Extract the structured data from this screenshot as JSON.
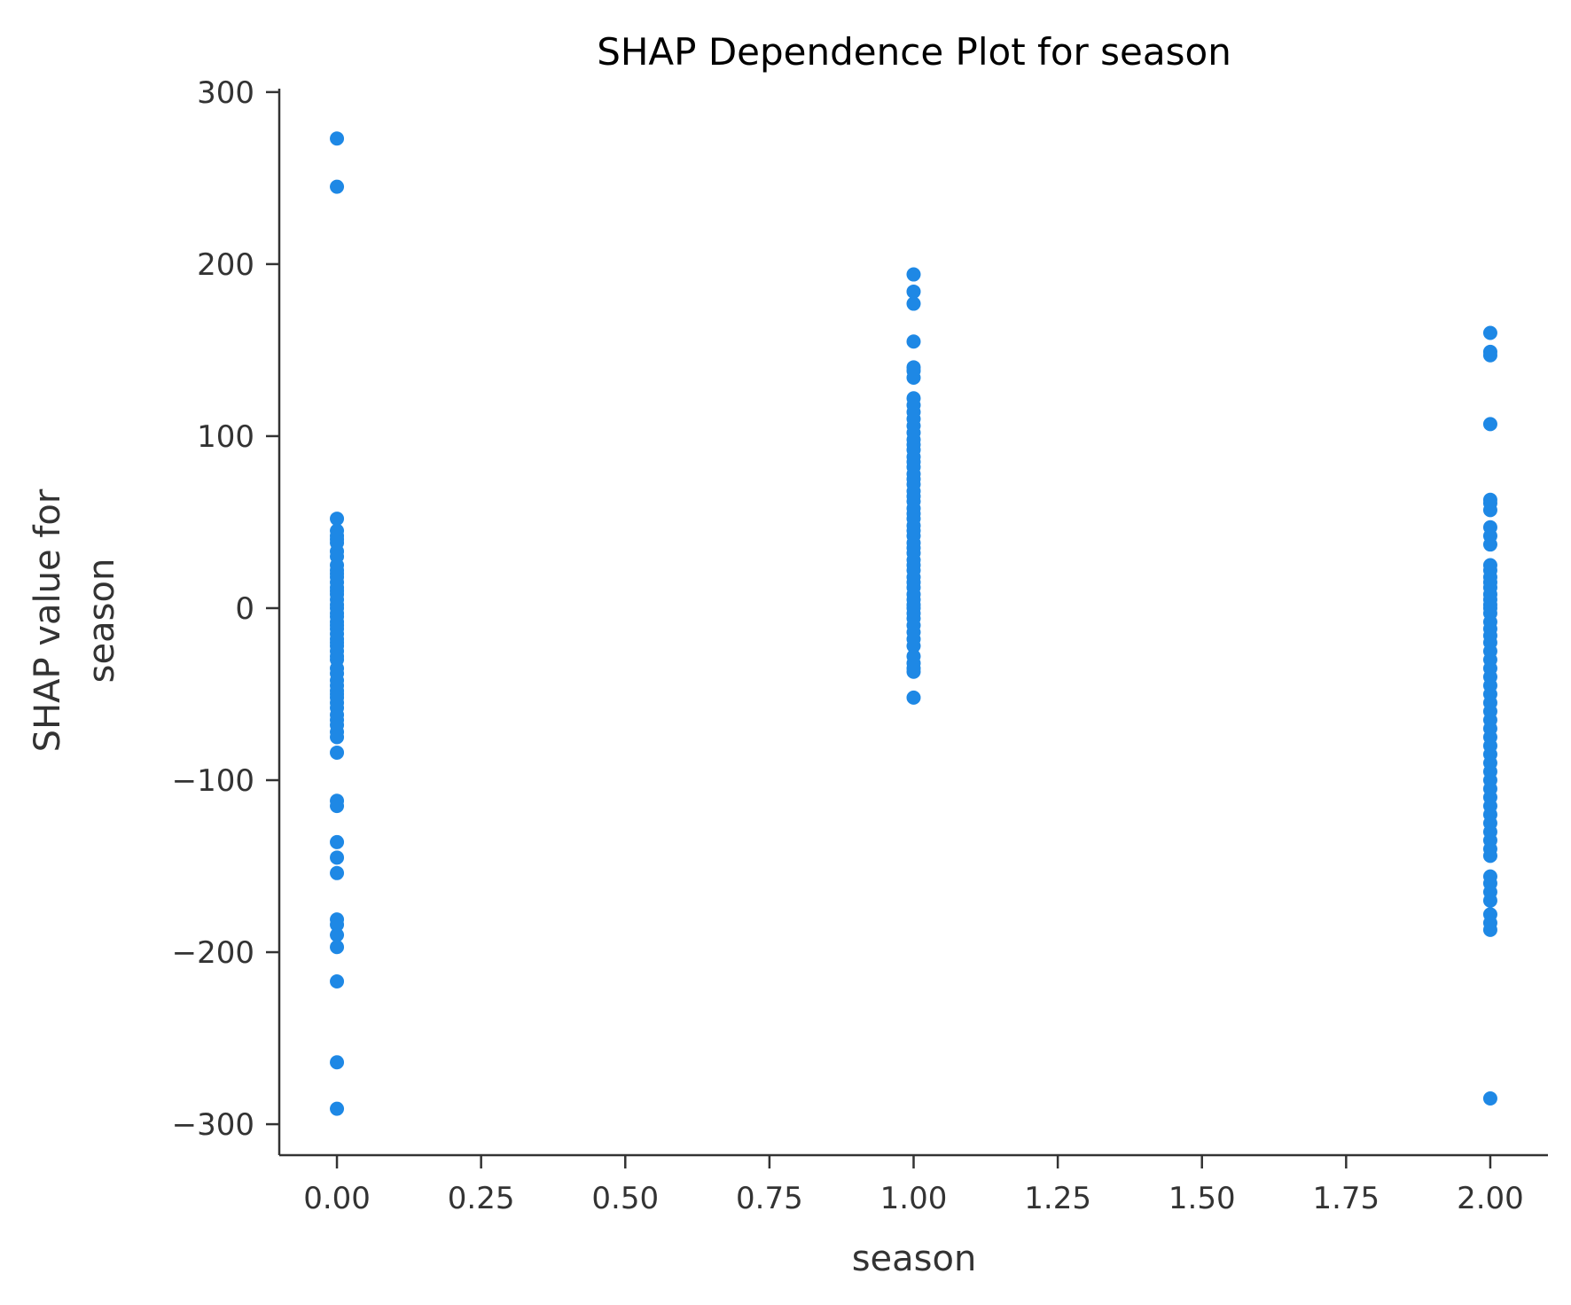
{
  "chart_data": {
    "type": "scatter",
    "title": "SHAP Dependence Plot for season",
    "xlabel": "season",
    "ylabel_lines": [
      "SHAP value for",
      "season"
    ],
    "xlim": [
      -0.1,
      2.1
    ],
    "ylim": [
      -318,
      302
    ],
    "x_ticks": [
      0.0,
      0.25,
      0.5,
      0.75,
      1.0,
      1.25,
      1.5,
      1.75,
      2.0
    ],
    "x_tick_labels": [
      "0.00",
      "0.25",
      "0.50",
      "0.75",
      "1.00",
      "1.25",
      "1.50",
      "1.75",
      "2.00"
    ],
    "y_ticks": [
      300,
      200,
      100,
      0,
      -100,
      -200,
      -300
    ],
    "y_tick_labels": [
      "300",
      "200",
      "100",
      "0",
      "−100",
      "−200",
      "−300"
    ],
    "grid": false,
    "point_color": "#1e88e5",
    "series": [
      {
        "name": "season = 0",
        "x": 0.0,
        "values": [
          273,
          245,
          52,
          45,
          42,
          40,
          38,
          33,
          30,
          25,
          22,
          20,
          18,
          15,
          12,
          10,
          8,
          5,
          2,
          0,
          -3,
          -5,
          -8,
          -10,
          -12,
          -15,
          -18,
          -20,
          -22,
          -25,
          -28,
          -30,
          -35,
          -38,
          -42,
          -45,
          -48,
          -50,
          -52,
          -55,
          -58,
          -62,
          -65,
          -68,
          -72,
          -75,
          -84,
          -112,
          -115,
          -136,
          -145,
          -154,
          -181,
          -184,
          -190,
          -197,
          -217,
          -264,
          -291
        ]
      },
      {
        "name": "season = 1",
        "x": 1.0,
        "values": [
          194,
          184,
          177,
          155,
          140,
          138,
          134,
          122,
          118,
          114,
          110,
          106,
          102,
          98,
          95,
          92,
          88,
          85,
          82,
          78,
          75,
          72,
          68,
          65,
          62,
          58,
          55,
          52,
          48,
          45,
          42,
          38,
          35,
          32,
          28,
          25,
          22,
          18,
          15,
          12,
          8,
          5,
          2,
          0,
          -3,
          -6,
          -10,
          -14,
          -18,
          -22,
          -28,
          -32,
          -35,
          -37,
          -52
        ]
      },
      {
        "name": "season = 2",
        "x": 2.0,
        "values": [
          160,
          149,
          147,
          107,
          63,
          61,
          57,
          47,
          42,
          37,
          25,
          22,
          18,
          15,
          12,
          8,
          5,
          2,
          0,
          -3,
          -8,
          -12,
          -16,
          -20,
          -25,
          -30,
          -35,
          -40,
          -45,
          -50,
          -55,
          -60,
          -65,
          -70,
          -75,
          -80,
          -85,
          -90,
          -95,
          -100,
          -105,
          -110,
          -115,
          -120,
          -125,
          -130,
          -135,
          -140,
          -144,
          -156,
          -160,
          -165,
          -170,
          -178,
          -183,
          -187,
          -285
        ]
      }
    ]
  }
}
